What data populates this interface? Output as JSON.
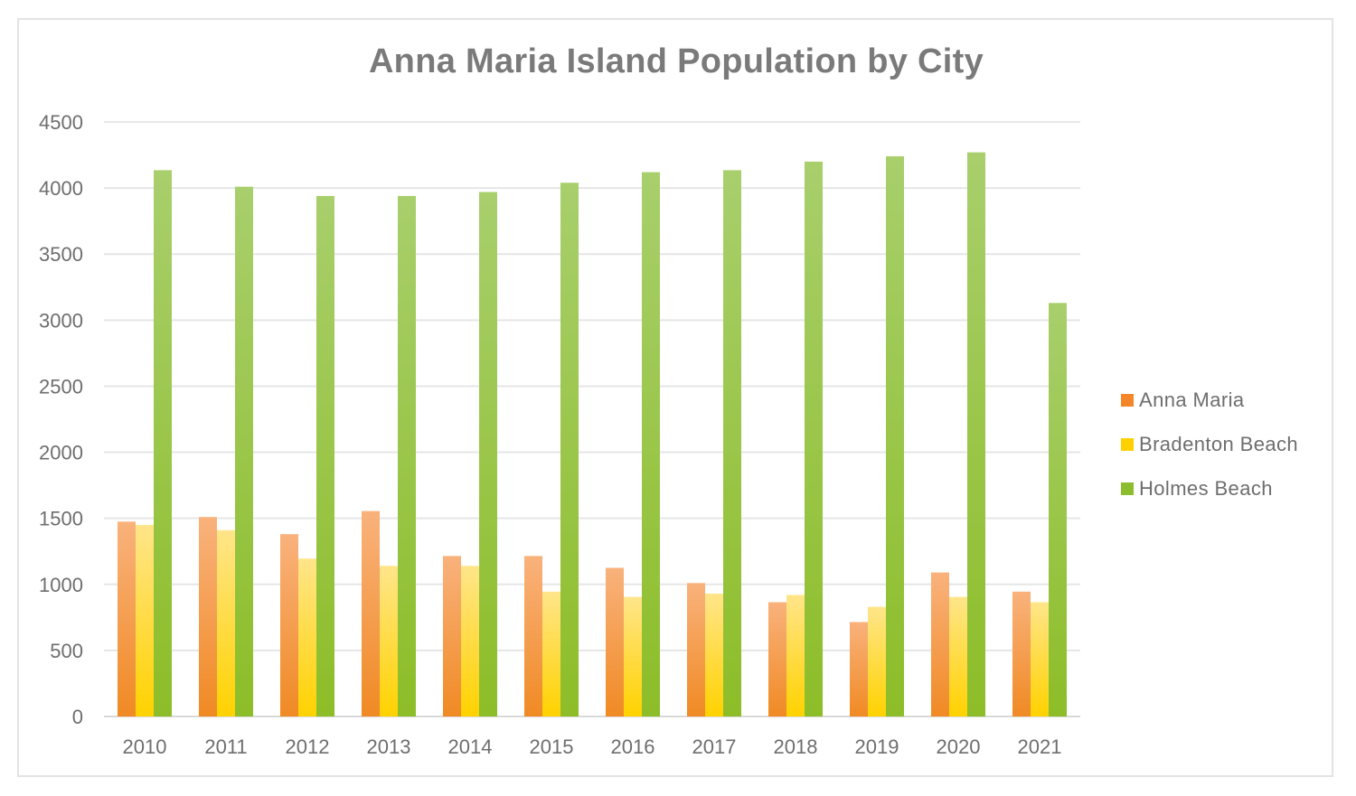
{
  "chart_data": {
    "type": "bar",
    "title": "Anna Maria Island Population by City",
    "xlabel": "",
    "ylabel": "",
    "categories": [
      "2010",
      "2011",
      "2012",
      "2013",
      "2014",
      "2015",
      "2016",
      "2017",
      "2018",
      "2019",
      "2020",
      "2021"
    ],
    "ylim": [
      0,
      4500
    ],
    "yticks": [
      "0",
      "500",
      "1000",
      "1500",
      "2000",
      "2500",
      "3000",
      "3500",
      "4000",
      "4500"
    ],
    "grid": true,
    "legend_position": "right",
    "series": [
      {
        "name": "Anna Maria",
        "color": "#f4862a",
        "values": [
          1475,
          1510,
          1380,
          1555,
          1215,
          1215,
          1125,
          1010,
          865,
          715,
          1090,
          945
        ]
      },
      {
        "name": "Bradenton Beach",
        "color": "#ffd000",
        "values": [
          1450,
          1410,
          1195,
          1140,
          1140,
          945,
          905,
          930,
          920,
          830,
          905,
          865
        ]
      },
      {
        "name": "Holmes Beach",
        "color": "#8cbd2e",
        "values": [
          4135,
          4010,
          3940,
          3940,
          3970,
          4040,
          4120,
          4135,
          4200,
          4240,
          4270,
          3130
        ]
      }
    ]
  }
}
